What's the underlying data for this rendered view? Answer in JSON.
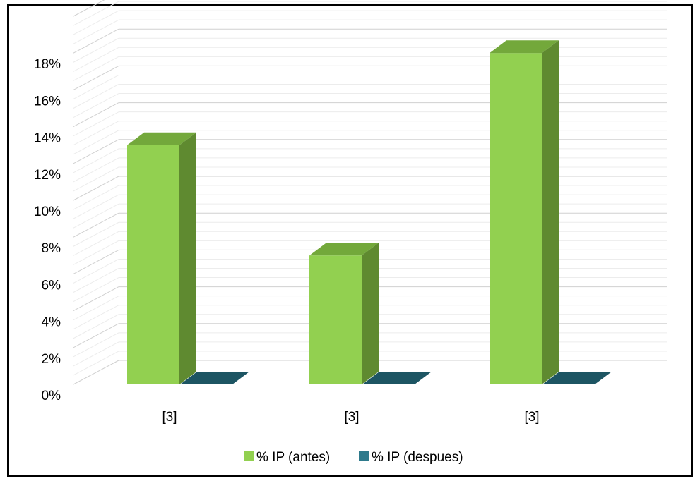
{
  "chart_data": {
    "type": "bar",
    "categories": [
      "[3]",
      "[3]",
      "[3]"
    ],
    "series": [
      {
        "name": "% IP (antes)",
        "values": [
          13,
          7,
          18
        ],
        "color": "#92d050",
        "side_color": "#5f8a30",
        "top_color": "#73a83b"
      },
      {
        "name": "% IP (despues)",
        "values": [
          0,
          0,
          0
        ],
        "color": "#2e7a8c",
        "side_color": "#1d5563",
        "top_color": "#24647a"
      }
    ],
    "y_ticks": [
      "0%",
      "2%",
      "4%",
      "6%",
      "8%",
      "10%",
      "12%",
      "14%",
      "16%",
      "18%"
    ],
    "ylim": [
      0,
      20
    ],
    "grid": true,
    "three_d": true,
    "legend_position": "bottom"
  }
}
